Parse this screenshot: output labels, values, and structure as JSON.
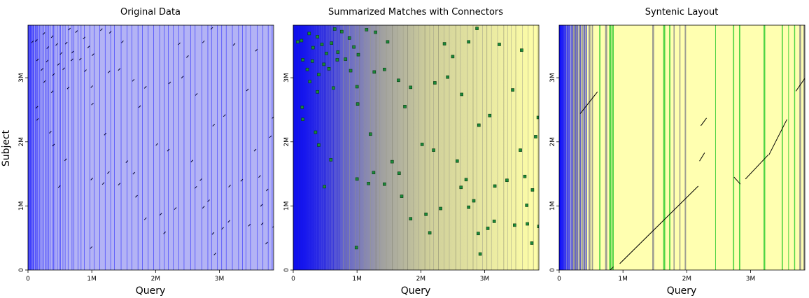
{
  "chart_data": [
    {
      "type": "scatter",
      "title": "Original Data",
      "xlabel": "Query",
      "ylabel": "Subject",
      "xlim": [
        0,
        3850000
      ],
      "ylim": [
        0,
        3820000
      ],
      "x_ticks": [
        {
          "value": 0,
          "label": "0"
        },
        {
          "value": 1000000,
          "label": "1M"
        },
        {
          "value": 2000000,
          "label": "2M"
        },
        {
          "value": 3000000,
          "label": "3M"
        }
      ],
      "y_ticks": [
        {
          "value": 0,
          "label": "0"
        },
        {
          "value": 1000000,
          "label": "1M"
        },
        {
          "value": 2000000,
          "label": "2M"
        },
        {
          "value": 3000000,
          "label": "3M"
        }
      ],
      "background": "contig boundary lines (blue, dense near origin) on light blue",
      "colors": {
        "lines": "#0000ff",
        "fill": "#b3b3f5",
        "points": "#000033"
      },
      "points": [
        [
          70000,
          3560000
        ],
        [
          130000,
          3580000
        ],
        [
          250000,
          3690000
        ],
        [
          310000,
          3470000
        ],
        [
          380000,
          3640000
        ],
        [
          450000,
          3520000
        ],
        [
          520000,
          3380000
        ],
        [
          600000,
          3540000
        ],
        [
          650000,
          3760000
        ],
        [
          700000,
          3400000
        ],
        [
          760000,
          3720000
        ],
        [
          820000,
          3290000
        ],
        [
          880000,
          3620000
        ],
        [
          950000,
          3480000
        ],
        [
          1020000,
          3360000
        ],
        [
          1150000,
          3750000
        ],
        [
          1290000,
          3710000
        ],
        [
          1480000,
          3560000
        ],
        [
          2370000,
          3530000
        ],
        [
          2500000,
          3330000
        ],
        [
          2750000,
          3560000
        ],
        [
          2880000,
          3770000
        ],
        [
          3230000,
          3520000
        ],
        [
          3580000,
          3430000
        ],
        [
          150000,
          3280000
        ],
        [
          220000,
          3130000
        ],
        [
          300000,
          3260000
        ],
        [
          400000,
          3050000
        ],
        [
          480000,
          3210000
        ],
        [
          560000,
          3140000
        ],
        [
          690000,
          3280000
        ],
        [
          900000,
          3110000
        ],
        [
          1000000,
          2860000
        ],
        [
          1270000,
          3090000
        ],
        [
          1430000,
          3130000
        ],
        [
          1650000,
          2960000
        ],
        [
          1840000,
          2850000
        ],
        [
          2220000,
          2920000
        ],
        [
          2420000,
          3010000
        ],
        [
          2640000,
          2740000
        ],
        [
          3080000,
          2410000
        ],
        [
          3440000,
          2810000
        ],
        [
          3840000,
          2380000
        ],
        [
          260000,
          2940000
        ],
        [
          380000,
          2780000
        ],
        [
          630000,
          2840000
        ],
        [
          1010000,
          2590000
        ],
        [
          1210000,
          2120000
        ],
        [
          1750000,
          2550000
        ],
        [
          2020000,
          1960000
        ],
        [
          2200000,
          1870000
        ],
        [
          2570000,
          1700000
        ],
        [
          2910000,
          2260000
        ],
        [
          3560000,
          1870000
        ],
        [
          3800000,
          2080000
        ],
        [
          150000,
          2350000
        ],
        [
          350000,
          2150000
        ],
        [
          1550000,
          1690000
        ],
        [
          1700000,
          1150000
        ],
        [
          2080000,
          870000
        ],
        [
          2310000,
          960000
        ],
        [
          2630000,
          1290000
        ],
        [
          2830000,
          1080000
        ],
        [
          3350000,
          1400000
        ],
        [
          3750000,
          1250000
        ],
        [
          3880000,
          1020000
        ],
        [
          140000,
          2540000
        ],
        [
          400000,
          1950000
        ],
        [
          590000,
          1720000
        ],
        [
          1000000,
          1420000
        ],
        [
          1180000,
          1350000
        ],
        [
          1430000,
          1340000
        ],
        [
          1840000,
          800000
        ],
        [
          2140000,
          580000
        ],
        [
          2710000,
          1410000
        ],
        [
          2900000,
          570000
        ],
        [
          3150000,
          760000
        ],
        [
          3470000,
          700000
        ],
        [
          3660000,
          1010000
        ],
        [
          490000,
          1300000
        ],
        [
          1260000,
          1520000
        ],
        [
          1660000,
          1510000
        ],
        [
          2750000,
          980000
        ],
        [
          3050000,
          650000
        ],
        [
          990000,
          350000
        ],
        [
          2930000,
          250000
        ],
        [
          3850000,
          680000
        ],
        [
          3160000,
          1310000
        ],
        [
          3630000,
          1460000
        ],
        [
          3670000,
          720000
        ],
        [
          3740000,
          420000
        ]
      ]
    },
    {
      "type": "scatter",
      "title": "Summarized Matches with Connectors",
      "xlabel": "Query",
      "ylabel": "",
      "xlim": [
        0,
        3850000
      ],
      "ylim": [
        0,
        3820000
      ],
      "x_ticks": [
        {
          "value": 0,
          "label": "0"
        },
        {
          "value": 1000000,
          "label": "1M"
        },
        {
          "value": 2000000,
          "label": "2M"
        },
        {
          "value": 3000000,
          "label": "3M"
        }
      ],
      "y_ticks": [
        {
          "value": 0,
          "label": "0"
        },
        {
          "value": 1000000,
          "label": "1M"
        },
        {
          "value": 2000000,
          "label": "2M"
        },
        {
          "value": 3000000,
          "label": "3M"
        }
      ],
      "background": "blue-to-yellow gradient with contig boundary lines",
      "colors": {
        "gradient_start": "#0000ff",
        "gradient_mid": "#a8a89c",
        "gradient_end": "#ffffa8",
        "lines": "#8a8a8a",
        "points": "#1a8a3a",
        "point_outline": "#0a3a10"
      },
      "points": [
        [
          70000,
          3560000
        ],
        [
          130000,
          3580000
        ],
        [
          250000,
          3690000
        ],
        [
          310000,
          3470000
        ],
        [
          380000,
          3640000
        ],
        [
          450000,
          3520000
        ],
        [
          520000,
          3380000
        ],
        [
          600000,
          3540000
        ],
        [
          650000,
          3760000
        ],
        [
          700000,
          3400000
        ],
        [
          760000,
          3720000
        ],
        [
          820000,
          3290000
        ],
        [
          880000,
          3620000
        ],
        [
          950000,
          3480000
        ],
        [
          1020000,
          3360000
        ],
        [
          1150000,
          3750000
        ],
        [
          1290000,
          3710000
        ],
        [
          1480000,
          3560000
        ],
        [
          2370000,
          3530000
        ],
        [
          2500000,
          3330000
        ],
        [
          2750000,
          3560000
        ],
        [
          2880000,
          3770000
        ],
        [
          3230000,
          3520000
        ],
        [
          3580000,
          3430000
        ],
        [
          150000,
          3280000
        ],
        [
          220000,
          3130000
        ],
        [
          300000,
          3260000
        ],
        [
          400000,
          3050000
        ],
        [
          480000,
          3210000
        ],
        [
          560000,
          3140000
        ],
        [
          690000,
          3280000
        ],
        [
          900000,
          3110000
        ],
        [
          1000000,
          2860000
        ],
        [
          1270000,
          3090000
        ],
        [
          1430000,
          3130000
        ],
        [
          1650000,
          2960000
        ],
        [
          1840000,
          2850000
        ],
        [
          2220000,
          2920000
        ],
        [
          2420000,
          3010000
        ],
        [
          2640000,
          2740000
        ],
        [
          3080000,
          2410000
        ],
        [
          3440000,
          2810000
        ],
        [
          3840000,
          2380000
        ],
        [
          260000,
          2940000
        ],
        [
          380000,
          2780000
        ],
        [
          630000,
          2840000
        ],
        [
          1010000,
          2590000
        ],
        [
          1210000,
          2120000
        ],
        [
          1750000,
          2550000
        ],
        [
          2020000,
          1960000
        ],
        [
          2200000,
          1870000
        ],
        [
          2570000,
          1700000
        ],
        [
          2910000,
          2260000
        ],
        [
          3560000,
          1870000
        ],
        [
          3800000,
          2080000
        ],
        [
          150000,
          2350000
        ],
        [
          350000,
          2150000
        ],
        [
          1550000,
          1690000
        ],
        [
          1700000,
          1150000
        ],
        [
          2080000,
          870000
        ],
        [
          2310000,
          960000
        ],
        [
          2630000,
          1290000
        ],
        [
          2830000,
          1080000
        ],
        [
          3350000,
          1400000
        ],
        [
          3750000,
          1250000
        ],
        [
          3880000,
          1020000
        ],
        [
          140000,
          2540000
        ],
        [
          400000,
          1950000
        ],
        [
          590000,
          1720000
        ],
        [
          1000000,
          1420000
        ],
        [
          1180000,
          1350000
        ],
        [
          1430000,
          1340000
        ],
        [
          1840000,
          800000
        ],
        [
          2140000,
          580000
        ],
        [
          2710000,
          1410000
        ],
        [
          2900000,
          570000
        ],
        [
          3150000,
          760000
        ],
        [
          3470000,
          700000
        ],
        [
          3660000,
          1010000
        ],
        [
          490000,
          1300000
        ],
        [
          1260000,
          1520000
        ],
        [
          1660000,
          1510000
        ],
        [
          2750000,
          980000
        ],
        [
          3050000,
          650000
        ],
        [
          990000,
          350000
        ],
        [
          2930000,
          250000
        ],
        [
          3850000,
          680000
        ],
        [
          3160000,
          1310000
        ],
        [
          3630000,
          1460000
        ],
        [
          3670000,
          720000
        ],
        [
          3740000,
          420000
        ]
      ]
    },
    {
      "type": "line",
      "title": "Syntenic Layout",
      "xlabel": "Query",
      "ylabel": "",
      "xlim": [
        0,
        3850000
      ],
      "ylim": [
        0,
        3820000
      ],
      "x_ticks": [
        {
          "value": 0,
          "label": "0"
        },
        {
          "value": 1000000,
          "label": "1M"
        },
        {
          "value": 2000000,
          "label": "2M"
        },
        {
          "value": 3000000,
          "label": "3M"
        }
      ],
      "y_ticks": [
        {
          "value": 0,
          "label": "0"
        },
        {
          "value": 1000000,
          "label": "1M"
        },
        {
          "value": 2000000,
          "label": "2M"
        },
        {
          "value": 3000000,
          "label": "3M"
        }
      ],
      "background": "yellow with blue, grey and green contig bands",
      "colors": {
        "fill": "#ffffb0",
        "blue": "#0000ff",
        "grey": "#8c8c8c",
        "green": "#33cc33",
        "lines": "#000000"
      },
      "segments": [
        {
          "x": [
            800000,
            850000
          ],
          "y": [
            0,
            50000
          ]
        },
        {
          "x": [
            950000,
            2180000
          ],
          "y": [
            100000,
            1310000
          ]
        },
        {
          "x": [
            330000,
            600000
          ],
          "y": [
            2440000,
            2780000
          ]
        },
        {
          "x": [
            2220000,
            2310000
          ],
          "y": [
            2250000,
            2370000
          ]
        },
        {
          "x": [
            2740000,
            2840000
          ],
          "y": [
            1450000,
            1340000
          ]
        },
        {
          "x": [
            2920000,
            3280000
          ],
          "y": [
            1420000,
            1800000
          ]
        },
        {
          "x": [
            3290000,
            3570000
          ],
          "y": [
            1800000,
            2350000
          ]
        },
        {
          "x": [
            2200000,
            2280000
          ],
          "y": [
            1700000,
            1830000
          ]
        },
        {
          "x": [
            3710000,
            3850000
          ],
          "y": [
            2790000,
            2990000
          ]
        }
      ]
    }
  ]
}
